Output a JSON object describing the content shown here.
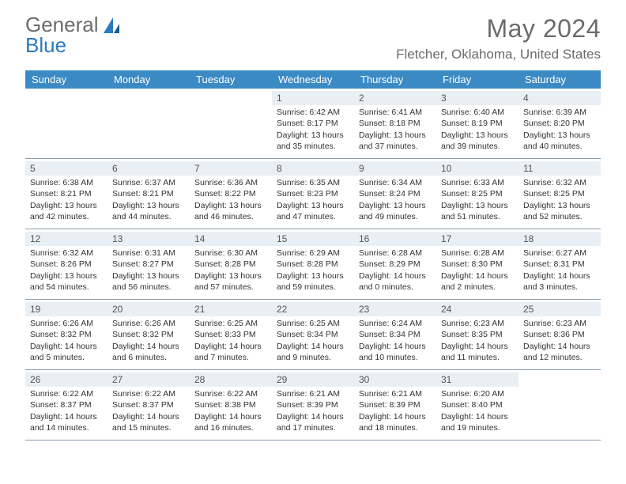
{
  "brand": {
    "word1": "General",
    "word2": "Blue"
  },
  "title": "May 2024",
  "location": "Fletcher, Oklahoma, United States",
  "colors": {
    "header_bg": "#3b8ac4",
    "header_text": "#ffffff",
    "daynum_bg": "#e8eff5",
    "border": "#8a9db0",
    "brand_gray": "#6b6b6b",
    "brand_blue": "#2b7ac0",
    "text": "#333333"
  },
  "columns": [
    "Sunday",
    "Monday",
    "Tuesday",
    "Wednesday",
    "Thursday",
    "Friday",
    "Saturday"
  ],
  "labels": {
    "sunrise": "Sunrise:",
    "sunset": "Sunset:",
    "daylight": "Daylight:"
  },
  "weeks": [
    [
      {
        "empty": true
      },
      {
        "empty": true
      },
      {
        "empty": true
      },
      {
        "num": "1",
        "sunrise": "6:42 AM",
        "sunset": "8:17 PM",
        "daylight": "13 hours and 35 minutes."
      },
      {
        "num": "2",
        "sunrise": "6:41 AM",
        "sunset": "8:18 PM",
        "daylight": "13 hours and 37 minutes."
      },
      {
        "num": "3",
        "sunrise": "6:40 AM",
        "sunset": "8:19 PM",
        "daylight": "13 hours and 39 minutes."
      },
      {
        "num": "4",
        "sunrise": "6:39 AM",
        "sunset": "8:20 PM",
        "daylight": "13 hours and 40 minutes."
      }
    ],
    [
      {
        "num": "5",
        "sunrise": "6:38 AM",
        "sunset": "8:21 PM",
        "daylight": "13 hours and 42 minutes."
      },
      {
        "num": "6",
        "sunrise": "6:37 AM",
        "sunset": "8:21 PM",
        "daylight": "13 hours and 44 minutes."
      },
      {
        "num": "7",
        "sunrise": "6:36 AM",
        "sunset": "8:22 PM",
        "daylight": "13 hours and 46 minutes."
      },
      {
        "num": "8",
        "sunrise": "6:35 AM",
        "sunset": "8:23 PM",
        "daylight": "13 hours and 47 minutes."
      },
      {
        "num": "9",
        "sunrise": "6:34 AM",
        "sunset": "8:24 PM",
        "daylight": "13 hours and 49 minutes."
      },
      {
        "num": "10",
        "sunrise": "6:33 AM",
        "sunset": "8:25 PM",
        "daylight": "13 hours and 51 minutes."
      },
      {
        "num": "11",
        "sunrise": "6:32 AM",
        "sunset": "8:25 PM",
        "daylight": "13 hours and 52 minutes."
      }
    ],
    [
      {
        "num": "12",
        "sunrise": "6:32 AM",
        "sunset": "8:26 PM",
        "daylight": "13 hours and 54 minutes."
      },
      {
        "num": "13",
        "sunrise": "6:31 AM",
        "sunset": "8:27 PM",
        "daylight": "13 hours and 56 minutes."
      },
      {
        "num": "14",
        "sunrise": "6:30 AM",
        "sunset": "8:28 PM",
        "daylight": "13 hours and 57 minutes."
      },
      {
        "num": "15",
        "sunrise": "6:29 AM",
        "sunset": "8:28 PM",
        "daylight": "13 hours and 59 minutes."
      },
      {
        "num": "16",
        "sunrise": "6:28 AM",
        "sunset": "8:29 PM",
        "daylight": "14 hours and 0 minutes."
      },
      {
        "num": "17",
        "sunrise": "6:28 AM",
        "sunset": "8:30 PM",
        "daylight": "14 hours and 2 minutes."
      },
      {
        "num": "18",
        "sunrise": "6:27 AM",
        "sunset": "8:31 PM",
        "daylight": "14 hours and 3 minutes."
      }
    ],
    [
      {
        "num": "19",
        "sunrise": "6:26 AM",
        "sunset": "8:32 PM",
        "daylight": "14 hours and 5 minutes."
      },
      {
        "num": "20",
        "sunrise": "6:26 AM",
        "sunset": "8:32 PM",
        "daylight": "14 hours and 6 minutes."
      },
      {
        "num": "21",
        "sunrise": "6:25 AM",
        "sunset": "8:33 PM",
        "daylight": "14 hours and 7 minutes."
      },
      {
        "num": "22",
        "sunrise": "6:25 AM",
        "sunset": "8:34 PM",
        "daylight": "14 hours and 9 minutes."
      },
      {
        "num": "23",
        "sunrise": "6:24 AM",
        "sunset": "8:34 PM",
        "daylight": "14 hours and 10 minutes."
      },
      {
        "num": "24",
        "sunrise": "6:23 AM",
        "sunset": "8:35 PM",
        "daylight": "14 hours and 11 minutes."
      },
      {
        "num": "25",
        "sunrise": "6:23 AM",
        "sunset": "8:36 PM",
        "daylight": "14 hours and 12 minutes."
      }
    ],
    [
      {
        "num": "26",
        "sunrise": "6:22 AM",
        "sunset": "8:37 PM",
        "daylight": "14 hours and 14 minutes."
      },
      {
        "num": "27",
        "sunrise": "6:22 AM",
        "sunset": "8:37 PM",
        "daylight": "14 hours and 15 minutes."
      },
      {
        "num": "28",
        "sunrise": "6:22 AM",
        "sunset": "8:38 PM",
        "daylight": "14 hours and 16 minutes."
      },
      {
        "num": "29",
        "sunrise": "6:21 AM",
        "sunset": "8:39 PM",
        "daylight": "14 hours and 17 minutes."
      },
      {
        "num": "30",
        "sunrise": "6:21 AM",
        "sunset": "8:39 PM",
        "daylight": "14 hours and 18 minutes."
      },
      {
        "num": "31",
        "sunrise": "6:20 AM",
        "sunset": "8:40 PM",
        "daylight": "14 hours and 19 minutes."
      },
      {
        "empty": true
      }
    ]
  ]
}
